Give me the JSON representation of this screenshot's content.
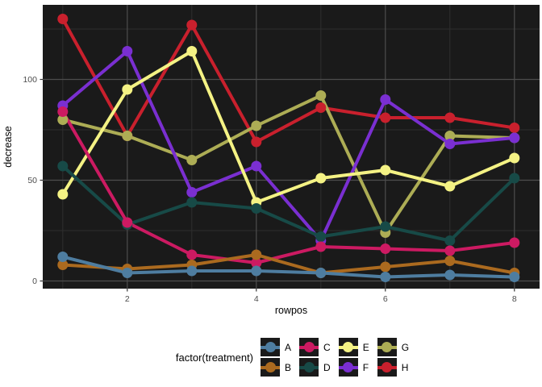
{
  "chart_data": {
    "type": "line",
    "title": "",
    "xlabel": "rowpos",
    "ylabel": "decrease",
    "x": [
      1,
      2,
      3,
      4,
      5,
      6,
      7,
      8
    ],
    "series": [
      {
        "name": "A",
        "color": "#4E7DA0",
        "values": [
          12,
          4,
          5,
          5,
          4,
          2,
          3,
          2
        ]
      },
      {
        "name": "B",
        "color": "#AB6A1F",
        "values": [
          8,
          6,
          8,
          13,
          4,
          7,
          10,
          4
        ]
      },
      {
        "name": "C",
        "color": "#CC1A62",
        "values": [
          84,
          29,
          13,
          9,
          17,
          16,
          15,
          19
        ]
      },
      {
        "name": "D",
        "color": "#174A47",
        "values": [
          57,
          28,
          39,
          36,
          22,
          27,
          20,
          51
        ]
      },
      {
        "name": "E",
        "color": "#F4F284",
        "values": [
          43,
          95,
          114,
          39,
          51,
          55,
          47,
          61
        ]
      },
      {
        "name": "F",
        "color": "#7A2FD1",
        "values": [
          87,
          114,
          44,
          57,
          20,
          90,
          68,
          71
        ]
      },
      {
        "name": "G",
        "color": "#ADAD55",
        "values": [
          80,
          72,
          60,
          77,
          92,
          24,
          72,
          71
        ]
      },
      {
        "name": "H",
        "color": "#C9202D",
        "values": [
          130,
          72,
          127,
          69,
          86,
          81,
          81,
          76
        ]
      }
    ],
    "legend": {
      "title": "factor(treatment)",
      "position": "bottom",
      "columns": 4
    },
    "axes": {
      "x_ticks": [
        2,
        4,
        6,
        8
      ],
      "x_minor": [
        1,
        3,
        5,
        7
      ],
      "x_domain": [
        0.69,
        8.39
      ],
      "y_ticks": [
        0,
        50,
        100
      ],
      "y_minor": [
        25,
        75,
        125
      ],
      "y_domain": [
        -3.8,
        137
      ]
    },
    "style": {
      "panel_bg": "#1A1A1A",
      "grid_major": "#4D4D4D",
      "grid_minor": "#2E2E2E",
      "tick_mark": "#333333",
      "axis_text": "#4D4D4D",
      "title_color": "#000000",
      "point_radius": 6.5,
      "line_width": 4,
      "draw_order": [
        "H",
        "G",
        "F",
        "E",
        "D",
        "C",
        "B",
        "A"
      ]
    },
    "grid": true
  }
}
